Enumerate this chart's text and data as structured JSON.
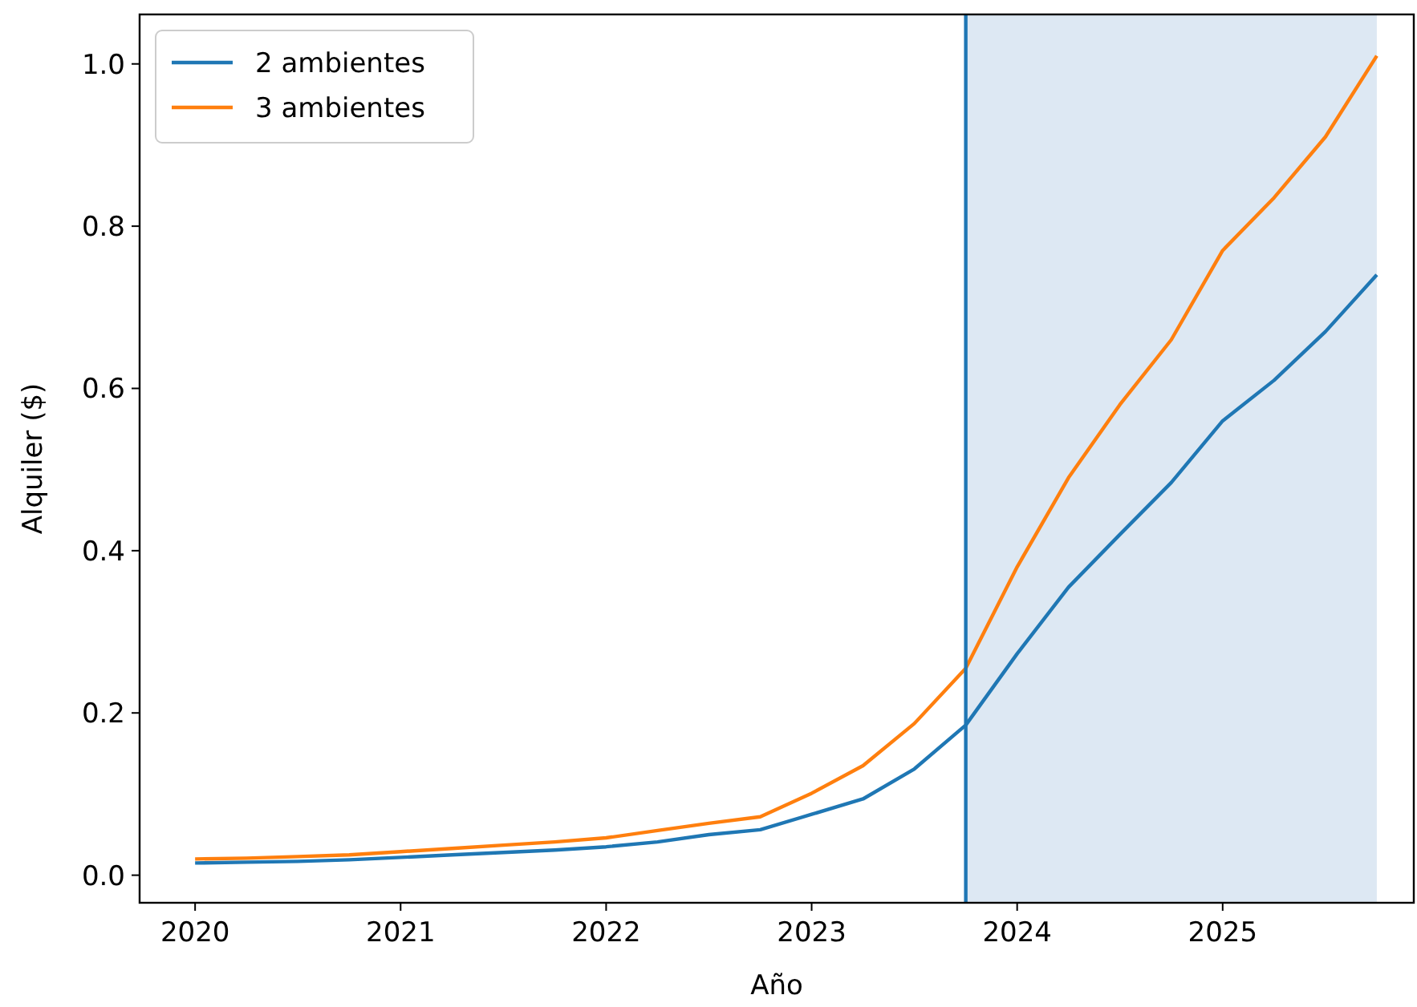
{
  "chart_data": {
    "type": "line",
    "xlabel": "Año",
    "ylabel": "Alquiler ($)",
    "x": [
      2020,
      2020.25,
      2020.5,
      2020.75,
      2021,
      2021.25,
      2021.5,
      2021.75,
      2022,
      2022.25,
      2022.5,
      2022.75,
      2023,
      2023.25,
      2023.5,
      2023.75,
      2024,
      2024.25,
      2024.5,
      2024.75,
      2025,
      2025.25,
      2025.5,
      2025.75
    ],
    "series": [
      {
        "name": "2 ambientes",
        "color": "#1f77b4",
        "values": [
          0.015,
          0.016,
          0.017,
          0.019,
          0.022,
          0.025,
          0.028,
          0.031,
          0.035,
          0.041,
          0.05,
          0.056,
          0.075,
          0.094,
          0.131,
          0.185,
          0.273,
          0.355,
          0.42,
          0.484,
          0.56,
          0.61,
          0.67,
          0.74
        ]
      },
      {
        "name": "3 ambientes",
        "color": "#ff7f0e",
        "values": [
          0.02,
          0.021,
          0.023,
          0.025,
          0.029,
          0.033,
          0.037,
          0.041,
          0.046,
          0.055,
          0.064,
          0.072,
          0.101,
          0.135,
          0.187,
          0.255,
          0.38,
          0.49,
          0.58,
          0.66,
          0.77,
          0.835,
          0.91,
          1.01
        ]
      }
    ],
    "xlim": [
      2019.73,
      2025.93
    ],
    "ylim": [
      -0.034,
      1.061
    ],
    "xticks": [
      2020,
      2021,
      2022,
      2023,
      2024,
      2025
    ],
    "yticks": [
      {
        "value": 0,
        "label": "0.0"
      },
      {
        "value": 0.2,
        "label": "0.2"
      },
      {
        "value": 0.4,
        "label": "0.4"
      },
      {
        "value": 0.6,
        "label": "0.6"
      },
      {
        "value": 0.8,
        "label": "0.8"
      },
      {
        "value": 1,
        "label": "1.0"
      }
    ],
    "ref_lines": [
      {
        "axis": "x",
        "value": 2023.75,
        "color": "#1f77b4"
      }
    ],
    "bands": [
      {
        "axis": "x",
        "from": 2023.75,
        "to": 2025.75,
        "color": "#dde8f3"
      }
    ],
    "legend": "top left",
    "grid": false,
    "line_style": "solid",
    "marker": "none"
  }
}
